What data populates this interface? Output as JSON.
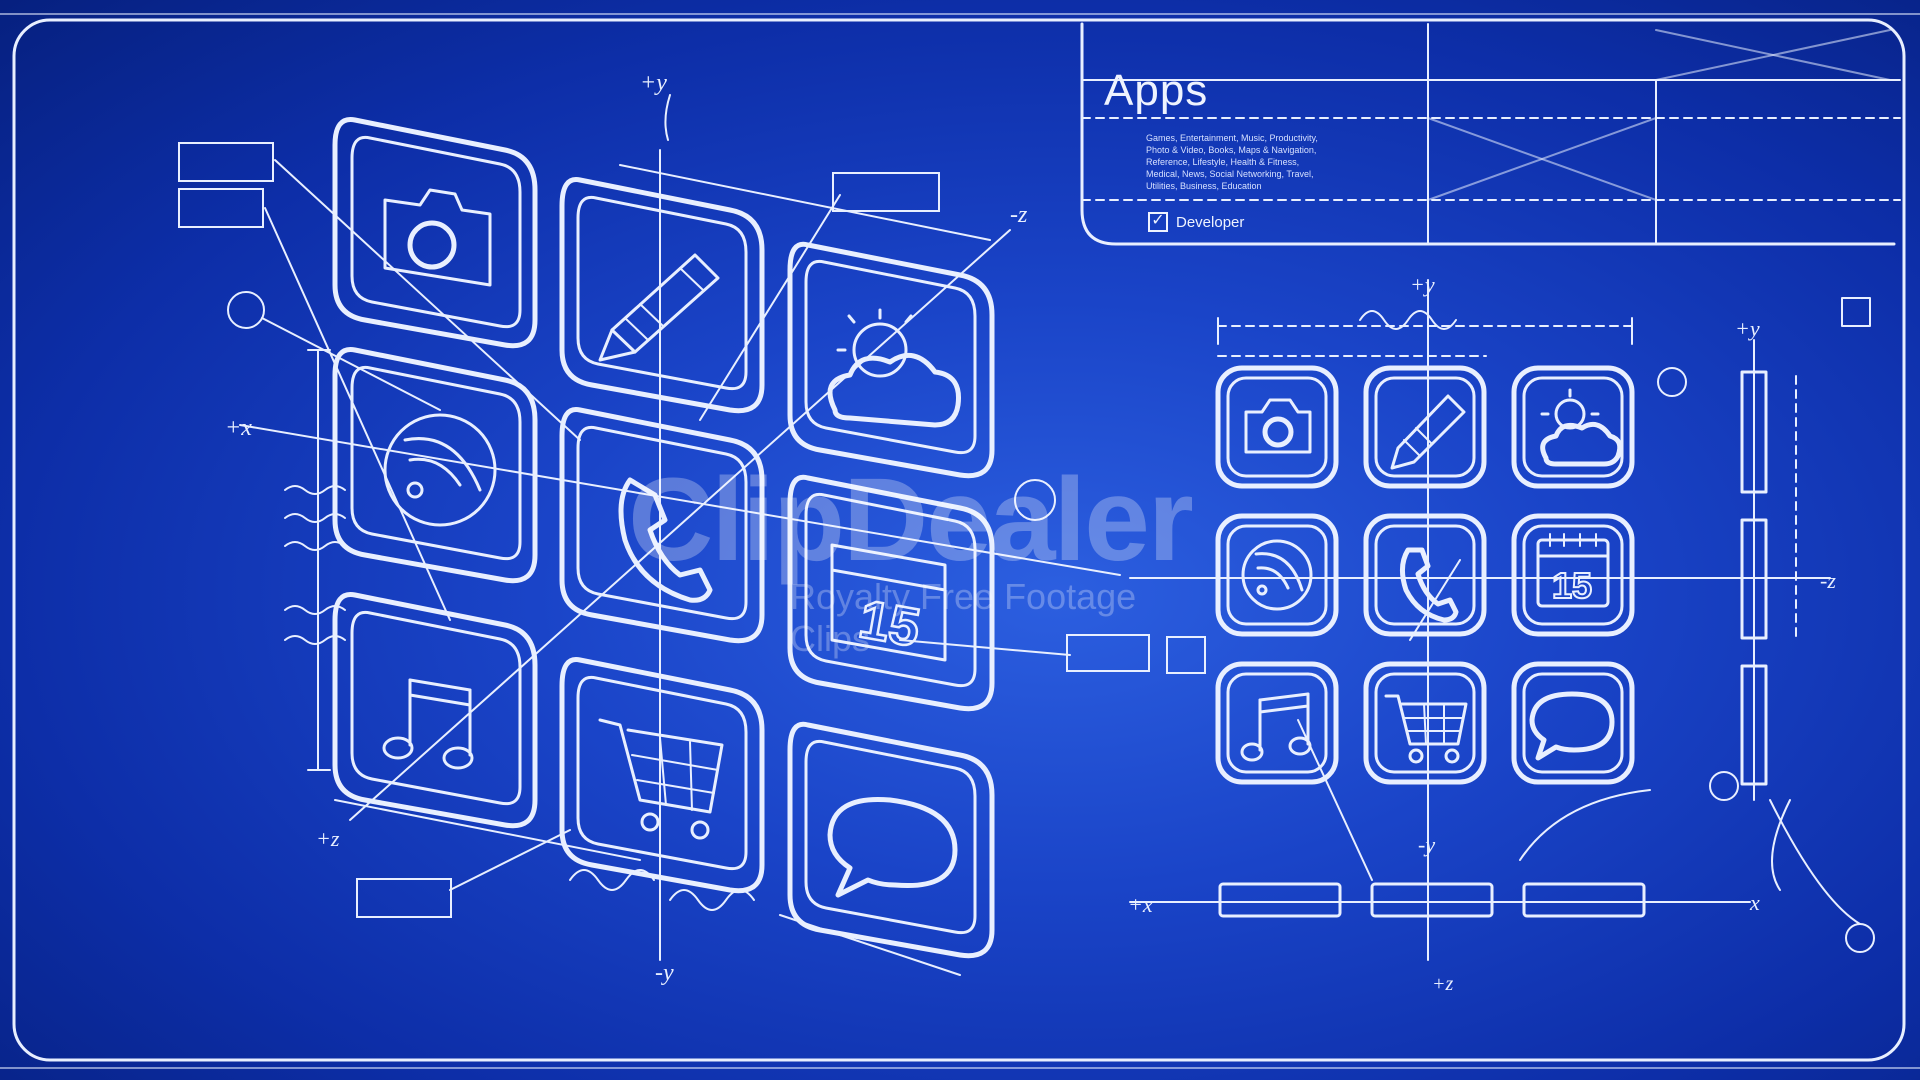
{
  "apps_panel": {
    "title": "Apps",
    "categories": [
      "Games, Entertainment, Music, Productivity,",
      "Photo & Video, Books, Maps & Navigation,",
      "Reference, Lifestyle, Health & Fitness,",
      "Medical, News, Social Networking, Travel,",
      "Utilities, Business, Education"
    ],
    "developer_label": "Developer",
    "developer_checked": true
  },
  "app_icons": [
    "camera-icon",
    "pencil-icon",
    "weather-icon",
    "rss-icon",
    "phone-icon",
    "calendar-icon",
    "music-icon",
    "shopping-cart-icon",
    "chat-icon"
  ],
  "calendar_day": "15",
  "axis_labels": {
    "plus_y": "+y",
    "minus_y": "-y",
    "plus_x": "+x",
    "minus_x": "-x",
    "plus_z": "+z",
    "minus_z": "-z"
  },
  "watermark": {
    "brand": "ClipDealer",
    "tagline": "Royalty Free Footage Clips"
  },
  "colors": {
    "background": "#1a44c8",
    "line": "#e8efff"
  }
}
